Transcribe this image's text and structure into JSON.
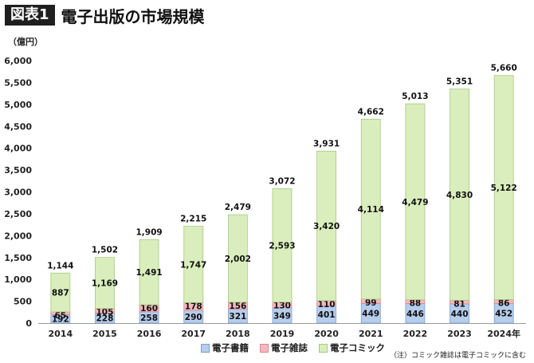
{
  "header": {
    "badge": "図表1",
    "title": "電子出版の市場規模"
  },
  "note": "（注）コミック雑誌は電子コミックに含む",
  "colors": {
    "books": "#b6cdec",
    "magazines": "#f4b9bd",
    "comics": "#d9eebc"
  },
  "chart_data": {
    "type": "bar",
    "stacked": true,
    "ylabel": "（億円）",
    "ylim": [
      0,
      6000
    ],
    "yticks": [
      0,
      500,
      1000,
      1500,
      2000,
      2500,
      3000,
      3500,
      4000,
      4500,
      5000,
      5500,
      6000
    ],
    "categories": [
      "2014",
      "2015",
      "2016",
      "2017",
      "2018",
      "2019",
      "2020",
      "2021",
      "2022",
      "2023",
      "2024年"
    ],
    "series": [
      {
        "name": "電子書籍",
        "values": [
          192,
          228,
          258,
          290,
          321,
          349,
          401,
          449,
          446,
          440,
          452
        ]
      },
      {
        "name": "電子雑誌",
        "values": [
          65,
          105,
          160,
          178,
          156,
          130,
          110,
          99,
          88,
          81,
          86
        ]
      },
      {
        "name": "電子コミック",
        "values": [
          887,
          1169,
          1491,
          1747,
          2002,
          2593,
          3420,
          4114,
          4479,
          4830,
          5122
        ]
      }
    ],
    "totals": [
      1144,
      1502,
      1909,
      2215,
      2479,
      3072,
      3931,
      4662,
      5013,
      5351,
      5660
    ],
    "legend_position": "bottom",
    "grid": false
  }
}
